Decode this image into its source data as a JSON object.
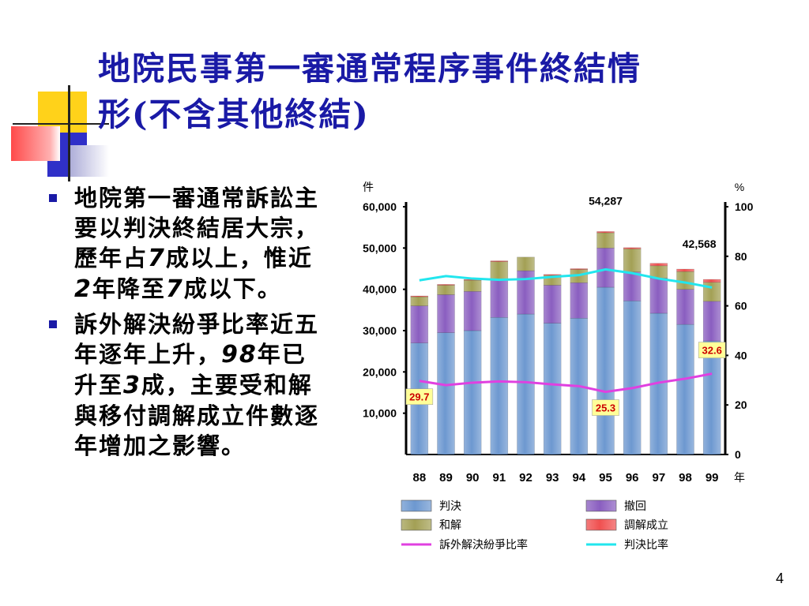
{
  "slide": {
    "title_line1": "地院民事第一審通常程序事件終結情",
    "title_line2": "形(不含其他終結)",
    "page_number": "4"
  },
  "bullets": [
    {
      "parts": [
        {
          "t": "地院第一審通常訴訟主要以判決終結居大宗，歷年占",
          "num": false
        },
        {
          "t": "7",
          "num": true
        },
        {
          "t": "成以上，惟近",
          "num": false
        },
        {
          "t": "2",
          "num": true
        },
        {
          "t": "年降至",
          "num": false
        },
        {
          "t": "7",
          "num": true
        },
        {
          "t": "成以下。",
          "num": false
        }
      ]
    },
    {
      "parts": [
        {
          "t": "訴外解決紛爭比率近五年逐年上升，",
          "num": false
        },
        {
          "t": "98",
          "num": true
        },
        {
          "t": "年已升至",
          "num": false
        },
        {
          "t": "3",
          "num": true
        },
        {
          "t": "成，主要受和解與移付調解成立件數逐年增加之影響。",
          "num": false
        }
      ]
    }
  ],
  "chart_data": {
    "type": "bar",
    "stacked": true,
    "categories": [
      "88",
      "89",
      "90",
      "91",
      "92",
      "93",
      "94",
      "95",
      "96",
      "97",
      "98",
      "99"
    ],
    "x_unit": "年",
    "y_left_unit": "件",
    "y_right_unit": "%",
    "y_left_lim": [
      0,
      60000
    ],
    "y_left_ticks": [
      "10,000",
      "20,000",
      "30,000",
      "40,000",
      "50,000",
      "60,000"
    ],
    "y_right_lim": [
      0,
      100
    ],
    "y_right_ticks": [
      "0",
      "20",
      "40",
      "60",
      "80",
      "100"
    ],
    "series": [
      {
        "name": "判決",
        "color": "#6d98d0",
        "values": [
          27000,
          29500,
          30000,
          33200,
          34000,
          31800,
          33000,
          40500,
          37200,
          34200,
          31500,
          27500
        ]
      },
      {
        "name": "撤回",
        "color": "#8a5ec0",
        "values": [
          9000,
          9200,
          9500,
          9200,
          10500,
          9200,
          8600,
          9500,
          7000,
          8500,
          8500,
          9600
        ]
      },
      {
        "name": "和解",
        "color": "#a3a055",
        "values": [
          2200,
          2300,
          2700,
          4300,
          3300,
          2400,
          3200,
          3700,
          5600,
          3000,
          4300,
          4600
        ]
      },
      {
        "name": "調解成立",
        "color": "#f05050",
        "values": [
          200,
          200,
          200,
          200,
          0,
          200,
          200,
          300,
          300,
          600,
          600,
          700
        ]
      }
    ],
    "line_series": [
      {
        "name": "訴外解決紛爭比率",
        "color": "#e040e0",
        "values": [
          29.7,
          28.0,
          29.0,
          29.5,
          29.2,
          28.3,
          27.6,
          25.3,
          26.8,
          29.0,
          30.6,
          32.6
        ]
      },
      {
        "name": "判決比率",
        "color": "#22e6ee",
        "values": [
          70.3,
          72.0,
          71.0,
          70.5,
          70.8,
          71.7,
          72.4,
          74.7,
          73.2,
          71.0,
          69.4,
          67.4
        ]
      }
    ],
    "bar_total_labels": [
      {
        "index": 7,
        "text": "54,287"
      },
      {
        "index": 11,
        "text": "42,568"
      }
    ],
    "line_value_labels": [
      {
        "index": 0,
        "text": "29.7"
      },
      {
        "index": 7,
        "text": "25.3"
      },
      {
        "index": 11,
        "text": "32.6"
      }
    ]
  }
}
